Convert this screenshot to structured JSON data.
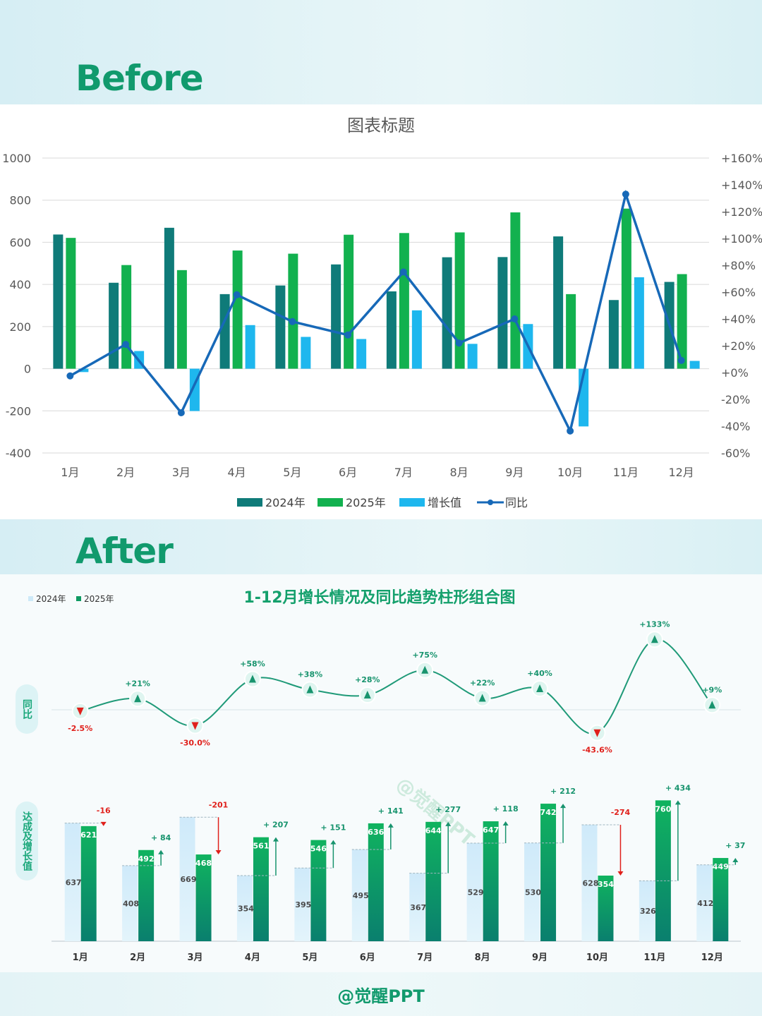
{
  "before": {
    "heading": "Before",
    "chart_title": "图表标题",
    "legend": [
      "2024年",
      "2025年",
      "增长值",
      "同比"
    ],
    "left_ticks": [
      "1000",
      "800",
      "600",
      "400",
      "200",
      "0",
      "-200",
      "-400"
    ],
    "right_ticks": [
      "+160%",
      "+140%",
      "+120%",
      "+100%",
      "+80%",
      "+60%",
      "+40%",
      "+20%",
      "+0%",
      "-20%",
      "-40%",
      "-60%"
    ]
  },
  "after": {
    "heading": "After",
    "chart_title": "1-12月增长情况及同比趋势柱形组合图",
    "legend": [
      "2024年",
      "2025年"
    ],
    "side_label_top": "同比",
    "side_label_bottom": "达成及增长值",
    "watermark": "@觉醒PPT"
  },
  "footer": {
    "credit": "@觉醒PPT"
  },
  "colors": {
    "y2024_before": "#0f7b79",
    "y2025_before": "#12b14f",
    "growth_before": "#1eb7ee",
    "yoy_before": "#1769b8",
    "y2024_after": "#cde9f8",
    "y2025_after": "#0e9a62",
    "line_after": "#1f9a78",
    "up": "#18946e",
    "down": "#e0201b"
  },
  "chart_data": [
    {
      "type": "bar",
      "title": "图表标题",
      "categories": [
        "1月",
        "2月",
        "3月",
        "4月",
        "5月",
        "6月",
        "7月",
        "8月",
        "9月",
        "10月",
        "11月",
        "12月"
      ],
      "series": [
        {
          "name": "2024年",
          "values": [
            637,
            408,
            669,
            354,
            395,
            495,
            367,
            529,
            530,
            628,
            326,
            412
          ]
        },
        {
          "name": "2025年",
          "values": [
            621,
            492,
            468,
            561,
            546,
            636,
            644,
            647,
            742,
            354,
            760,
            449
          ]
        },
        {
          "name": "增长值",
          "values": [
            -16,
            84,
            -201,
            207,
            151,
            141,
            277,
            118,
            212,
            -274,
            434,
            37
          ]
        },
        {
          "name": "同比",
          "axis": "right",
          "type": "line",
          "values": [
            -2.5,
            21,
            -30,
            58,
            38,
            28,
            75,
            22,
            40,
            -43.6,
            133,
            9
          ]
        }
      ],
      "ylim": [
        -400,
        1000
      ],
      "y2lim": [
        -60,
        160
      ],
      "grid": true,
      "legend_position": "bottom"
    },
    {
      "type": "bar",
      "title": "1-12月增长情况及同比趋势柱形组合图",
      "categories": [
        "1月",
        "2月",
        "3月",
        "4月",
        "5月",
        "6月",
        "7月",
        "8月",
        "9月",
        "10月",
        "11月",
        "12月"
      ],
      "series": [
        {
          "name": "2024年",
          "values": [
            637,
            408,
            669,
            354,
            395,
            495,
            367,
            529,
            530,
            628,
            326,
            412
          ]
        },
        {
          "name": "2025年",
          "values": [
            621,
            492,
            468,
            561,
            546,
            636,
            644,
            647,
            742,
            354,
            760,
            449
          ]
        }
      ],
      "growth_labels": [
        "-16",
        "+ 84",
        "-201",
        "+ 207",
        "+ 151",
        "+ 141",
        "+ 277",
        "+ 118",
        "+ 212",
        "-274",
        "+ 434",
        "+ 37"
      ],
      "yoy_labels": [
        "-2.5%",
        "+21%",
        "-30.0%",
        "+58%",
        "+38%",
        "+28%",
        "+75%",
        "+22%",
        "+40%",
        "-43.6%",
        "+133%",
        "+9%"
      ],
      "yoy_values": [
        -2.5,
        21,
        -30,
        58,
        38,
        28,
        75,
        22,
        40,
        -43.6,
        133,
        9
      ],
      "legend_position": "top-left"
    }
  ]
}
